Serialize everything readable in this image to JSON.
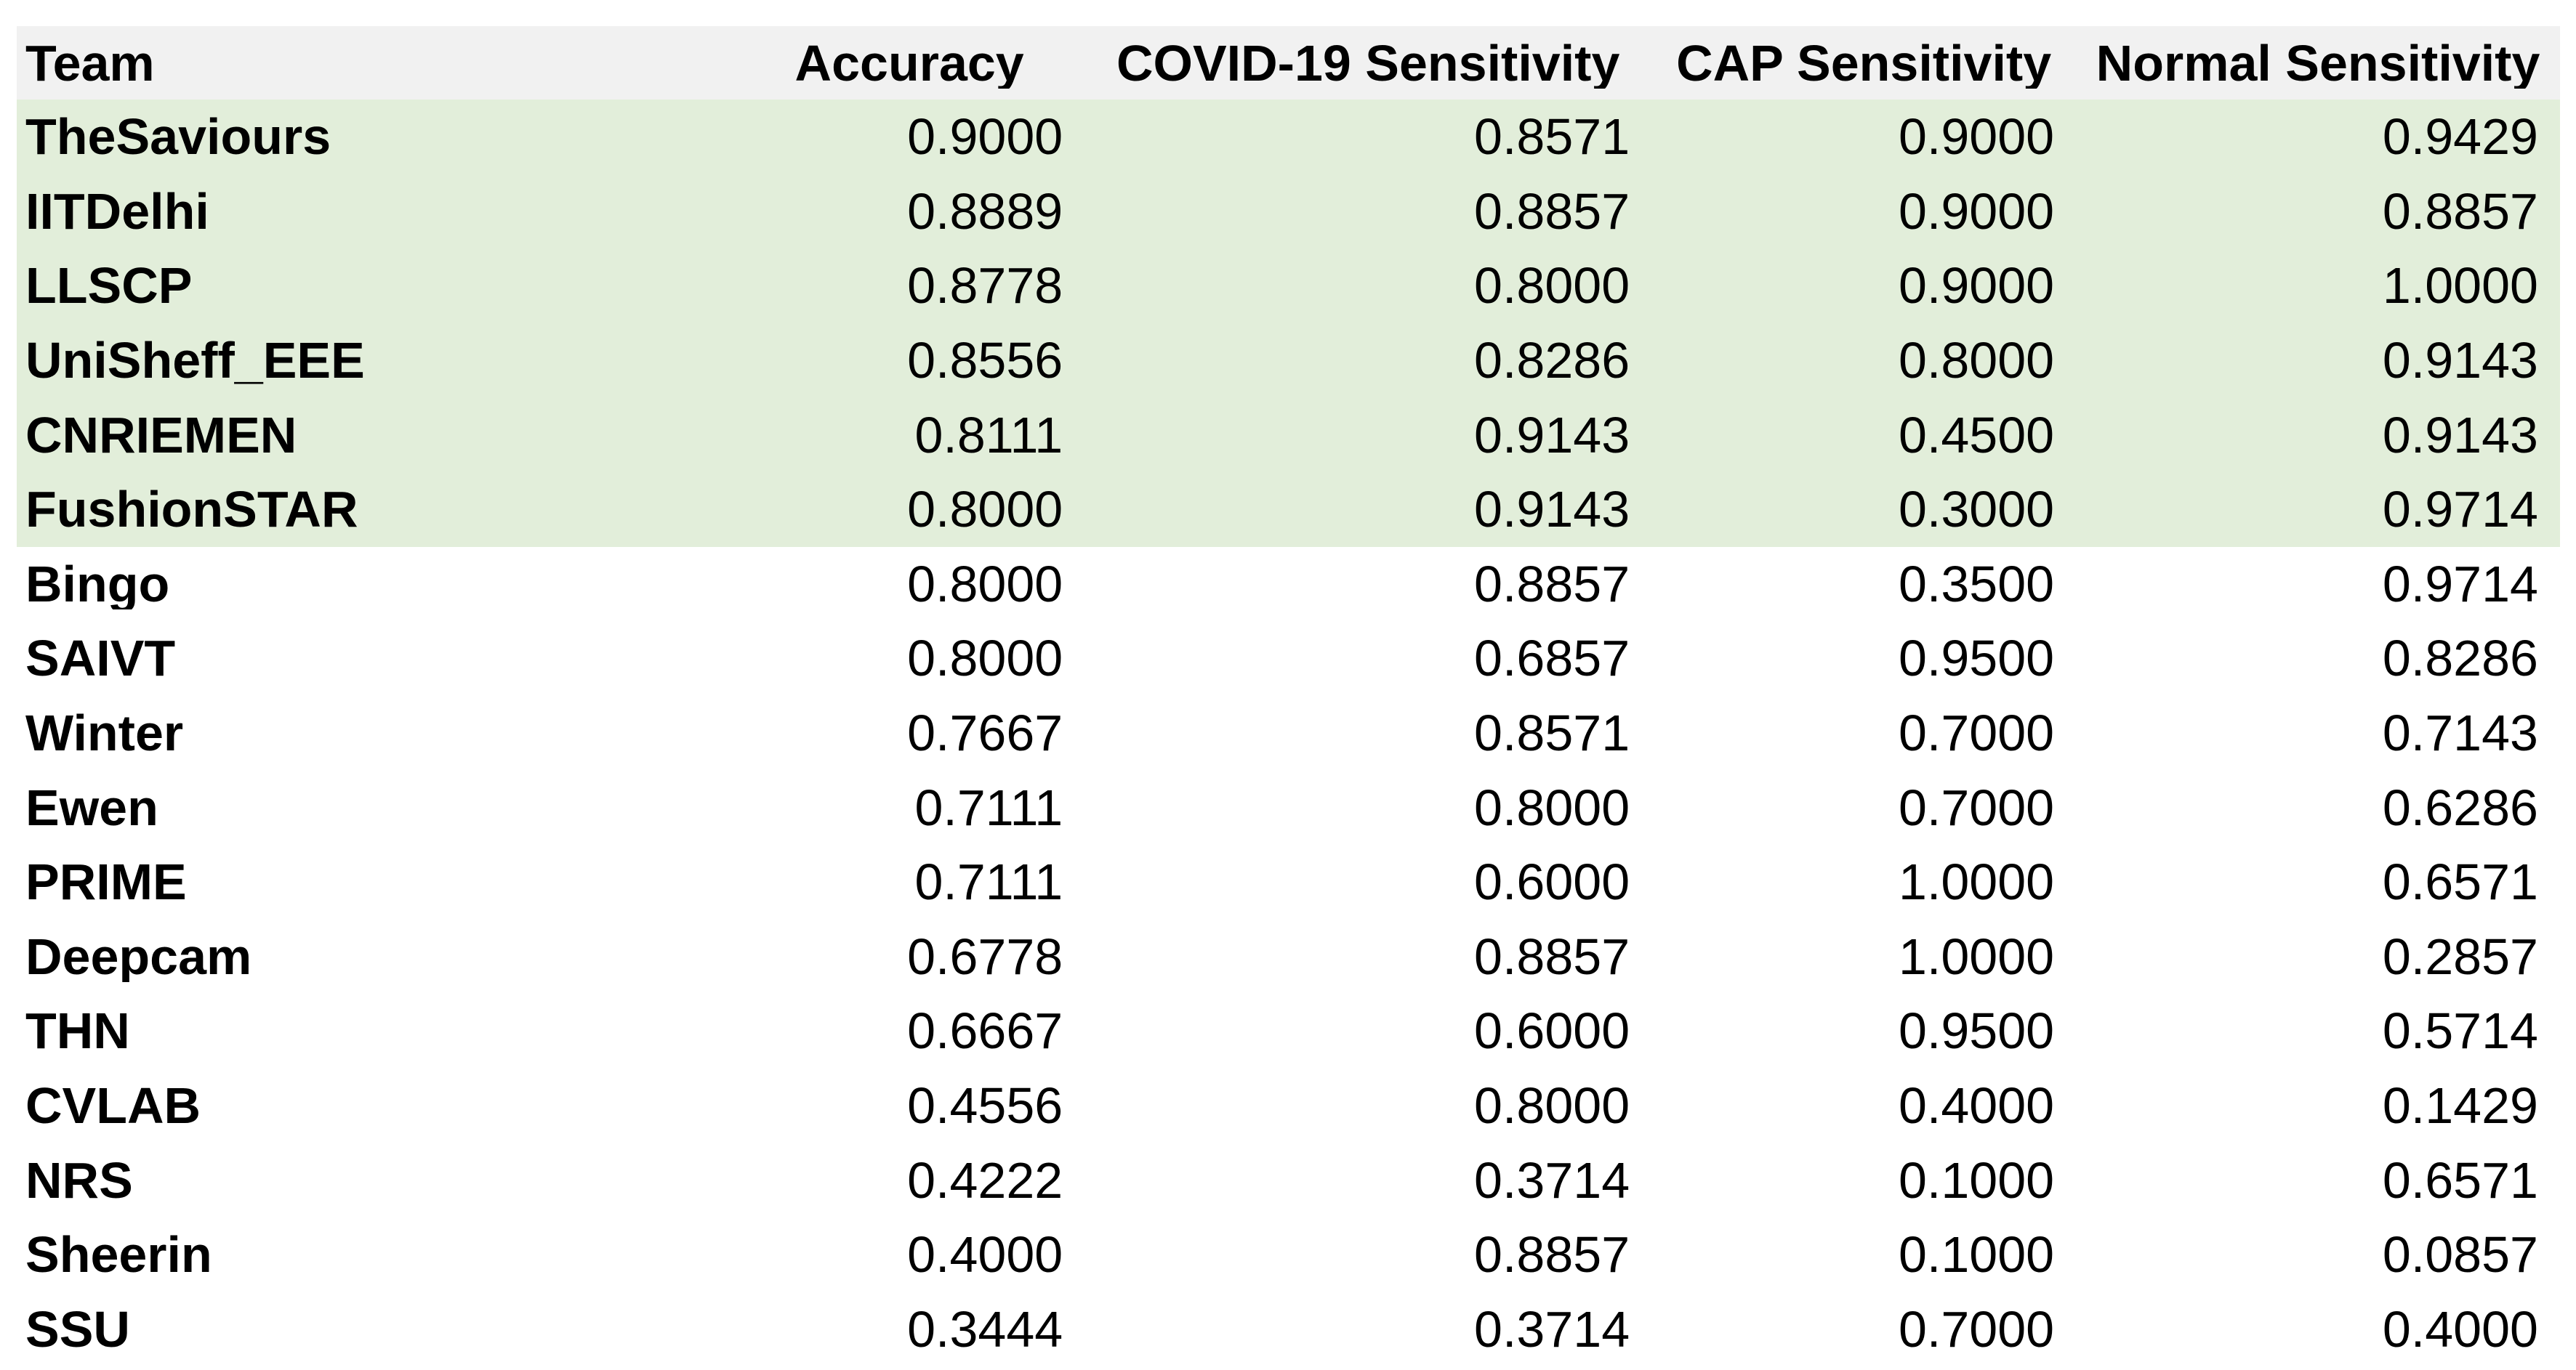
{
  "table": {
    "columns": [
      {
        "key": "team",
        "label": "Team"
      },
      {
        "key": "accuracy",
        "label": "Accuracy"
      },
      {
        "key": "covid_sensitivity",
        "label": "COVID-19 Sensitivity"
      },
      {
        "key": "cap_sensitivity",
        "label": "CAP Sensitivity"
      },
      {
        "key": "normal_sensitivity",
        "label": "Normal Sensitivity"
      }
    ],
    "rows": [
      {
        "team": "TheSaviours",
        "accuracy": "0.9000",
        "covid_sensitivity": "0.8571",
        "cap_sensitivity": "0.9000",
        "normal_sensitivity": "0.9429",
        "highlighted": true
      },
      {
        "team": "IITDelhi",
        "accuracy": "0.8889",
        "covid_sensitivity": "0.8857",
        "cap_sensitivity": "0.9000",
        "normal_sensitivity": "0.8857",
        "highlighted": true
      },
      {
        "team": "LLSCP",
        "accuracy": "0.8778",
        "covid_sensitivity": "0.8000",
        "cap_sensitivity": "0.9000",
        "normal_sensitivity": "1.0000",
        "highlighted": true
      },
      {
        "team": "UniSheff_EEE",
        "accuracy": "0.8556",
        "covid_sensitivity": "0.8286",
        "cap_sensitivity": "0.8000",
        "normal_sensitivity": "0.9143",
        "highlighted": true
      },
      {
        "team": "CNRIEMEN",
        "accuracy": "0.8111",
        "covid_sensitivity": "0.9143",
        "cap_sensitivity": "0.4500",
        "normal_sensitivity": "0.9143",
        "highlighted": true
      },
      {
        "team": "FushionSTAR",
        "accuracy": "0.8000",
        "covid_sensitivity": "0.9143",
        "cap_sensitivity": "0.3000",
        "normal_sensitivity": "0.9714",
        "highlighted": true
      },
      {
        "team": "Bingo",
        "accuracy": "0.8000",
        "covid_sensitivity": "0.8857",
        "cap_sensitivity": "0.3500",
        "normal_sensitivity": "0.9714",
        "highlighted": false
      },
      {
        "team": "SAIVT",
        "accuracy": "0.8000",
        "covid_sensitivity": "0.6857",
        "cap_sensitivity": "0.9500",
        "normal_sensitivity": "0.8286",
        "highlighted": false
      },
      {
        "team": "Winter",
        "accuracy": "0.7667",
        "covid_sensitivity": "0.8571",
        "cap_sensitivity": "0.7000",
        "normal_sensitivity": "0.7143",
        "highlighted": false
      },
      {
        "team": "Ewen",
        "accuracy": "0.7111",
        "covid_sensitivity": "0.8000",
        "cap_sensitivity": "0.7000",
        "normal_sensitivity": "0.6286",
        "highlighted": false
      },
      {
        "team": "PRIME",
        "accuracy": "0.7111",
        "covid_sensitivity": "0.6000",
        "cap_sensitivity": "1.0000",
        "normal_sensitivity": "0.6571",
        "highlighted": false
      },
      {
        "team": "Deepcam",
        "accuracy": "0.6778",
        "covid_sensitivity": "0.8857",
        "cap_sensitivity": "1.0000",
        "normal_sensitivity": "0.2857",
        "highlighted": false
      },
      {
        "team": "THN",
        "accuracy": "0.6667",
        "covid_sensitivity": "0.6000",
        "cap_sensitivity": "0.9500",
        "normal_sensitivity": "0.5714",
        "highlighted": false
      },
      {
        "team": "CVLAB",
        "accuracy": "0.4556",
        "covid_sensitivity": "0.8000",
        "cap_sensitivity": "0.4000",
        "normal_sensitivity": "0.1429",
        "highlighted": false
      },
      {
        "team": "NRS",
        "accuracy": "0.4222",
        "covid_sensitivity": "0.3714",
        "cap_sensitivity": "0.1000",
        "normal_sensitivity": "0.6571",
        "highlighted": false
      },
      {
        "team": "Sheerin",
        "accuracy": "0.4000",
        "covid_sensitivity": "0.8857",
        "cap_sensitivity": "0.1000",
        "normal_sensitivity": "0.0857",
        "highlighted": false
      },
      {
        "team": "SSU",
        "accuracy": "0.3444",
        "covid_sensitivity": "0.3714",
        "cap_sensitivity": "0.7000",
        "normal_sensitivity": "0.4000",
        "highlighted": false
      }
    ],
    "colors": {
      "header_bg": "#f1f1f1",
      "highlight_bg": "#e2eeda",
      "row_bg": "#ffffff",
      "text": "#000000"
    }
  }
}
